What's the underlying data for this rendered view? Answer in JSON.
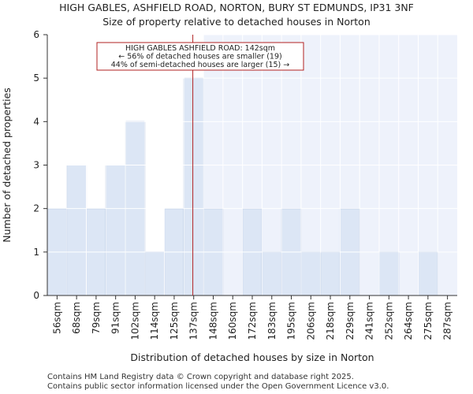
{
  "title": "HIGH GABLES, ASHFIELD ROAD, NORTON, BURY ST EDMUNDS, IP31 3NF",
  "subtitle": "Size of property relative to detached houses in Norton",
  "footer_line1": "Contains HM Land Registry data © Crown copyright and database right 2025.",
  "footer_line2": "Contains public sector information licensed under the Open Government Licence v3.0.",
  "colors": {
    "bar_fill": "#dce6f5",
    "bar_stroke": "#6f8fc6",
    "highlight_bg": "#eef2fb",
    "marker": "#b22222",
    "grid": "#ffffff"
  },
  "chart_data": {
    "type": "bar",
    "title": "Size of property relative to detached houses in Norton",
    "xlabel": "Distribution of detached houses by size in Norton",
    "ylabel": "Number of detached properties",
    "categories": [
      "56sqm",
      "68sqm",
      "79sqm",
      "91sqm",
      "102sqm",
      "114sqm",
      "125sqm",
      "137sqm",
      "148sqm",
      "160sqm",
      "172sqm",
      "183sqm",
      "195sqm",
      "206sqm",
      "218sqm",
      "229sqm",
      "241sqm",
      "252sqm",
      "264sqm",
      "275sqm",
      "287sqm"
    ],
    "values": [
      2,
      3,
      2,
      3,
      4,
      1,
      2,
      5,
      2,
      0,
      2,
      1,
      2,
      1,
      1,
      2,
      0,
      1,
      0,
      1,
      0
    ],
    "ylim": [
      0,
      6
    ],
    "yticks": [
      0,
      1,
      2,
      3,
      4,
      5,
      6
    ],
    "grid": true,
    "highlight_from_category": "148sqm",
    "marker_value_sqm": 142,
    "annotation": {
      "line1": "HIGH GABLES ASHFIELD ROAD: 142sqm",
      "line2": "← 56% of detached houses are smaller (19)",
      "line3": "44% of semi-detached houses are larger (15) →"
    }
  }
}
